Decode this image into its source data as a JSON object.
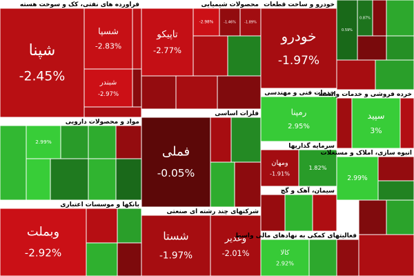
{
  "chart_data": {
    "type": "treemap",
    "sectors": [
      {
        "name": "فراورده های نفتی، کک و سوخت هسته",
        "labels": [
          "شپنا",
          "شسپا",
          null,
          "شبندر",
          null,
          null
        ],
        "values": [
          -2.45,
          -2.83,
          -2.5,
          -2.97,
          -2.1,
          -1.2
        ],
        "value_labels": [
          "-2.45%",
          "-2.83%",
          null,
          "-2.97%",
          null,
          null
        ]
      },
      {
        "name": "محصولات شیمیایی",
        "labels": [
          "تاپیکو",
          null,
          null,
          null,
          null,
          null,
          null,
          null,
          null
        ],
        "values": [
          -2.77,
          -2.98,
          -1.46,
          -1.89,
          -2.2,
          1.2,
          -1.5,
          -2.0,
          -1.0
        ],
        "value_labels": [
          "-2.77%",
          "-2.98%",
          "-1.46%",
          "-1.89%",
          null,
          null,
          null,
          null,
          null
        ]
      },
      {
        "name": "خودرو و ساخت قطعات",
        "labels": [
          "خودرو"
        ],
        "values": [
          -1.97
        ],
        "value_labels": [
          "-1.97%"
        ]
      },
      {
        "labels": [
          null,
          null,
          null,
          null,
          null,
          null,
          null,
          null
        ],
        "values": [
          0.59,
          0.87,
          -1.1,
          2.1,
          -0.8,
          1.5,
          -2.0,
          1.9
        ],
        "value_labels": [
          "0.59%",
          "0.87%",
          null,
          null,
          null,
          null,
          null,
          null
        ]
      },
      {
        "name": "مواد و محصولات دارویی",
        "labels": [
          null,
          null,
          null,
          null,
          null,
          null,
          null,
          null,
          null
        ],
        "values": [
          2.5,
          2.99,
          1.8,
          2.2,
          -1.5,
          3.0,
          1.0,
          2.4,
          0.6
        ],
        "value_labels": [
          null,
          "2.99%",
          null,
          null,
          null,
          null,
          null,
          null,
          null
        ]
      },
      {
        "name": "فلزات اساسی",
        "labels": [
          "فملی",
          null,
          null,
          null,
          null
        ],
        "values": [
          -0.05,
          -2.0,
          1.4,
          2.2,
          -1.3
        ],
        "value_labels": [
          "-0.05%",
          null,
          null,
          null,
          null
        ]
      },
      {
        "name": "خدمات فنی و مهندسی",
        "labels": [
          "رمپنا"
        ],
        "values": [
          2.95
        ],
        "value_labels": [
          "2.95%"
        ]
      },
      {
        "name": "خرده فروشی و خدمات وابسته",
        "labels": [
          null,
          "سپید",
          null
        ],
        "values": [
          -1.8,
          3,
          -2.3
        ],
        "value_labels": [
          null,
          "3%",
          null
        ]
      },
      {
        "name": "سرمایه گذاریها",
        "labels": [
          "ومهان",
          null
        ],
        "values": [
          -1.91,
          1.82
        ],
        "value_labels": [
          "-1.91%",
          "1.82%"
        ]
      },
      {
        "name": "انبوه سازی، املاک و مستغلات",
        "labels": [
          null,
          null,
          null
        ],
        "values": [
          2.99,
          -1.5,
          1.2
        ],
        "value_labels": [
          "2.99%",
          null,
          null
        ]
      },
      {
        "name": "بانکها و موسسات اعتباری",
        "labels": [
          "وبملت",
          null,
          null,
          null,
          null
        ],
        "values": [
          -2.92,
          -2.4,
          1.9,
          2.3,
          -0.9
        ],
        "value_labels": [
          "-2.92%",
          null,
          null,
          null,
          null
        ]
      },
      {
        "name": "شرکتهای چند رشته ای صنعتی",
        "labels": [
          "شستا",
          "وغدیر"
        ],
        "values": [
          -1.97,
          -2.01
        ],
        "value_labels": [
          "-1.97%",
          "-2.01%"
        ]
      },
      {
        "name": "سیمان، آهک و گچ",
        "labels": [
          null,
          null,
          null
        ],
        "values": [
          -1.6,
          2.4,
          -2.2
        ],
        "value_labels": [
          null,
          null,
          null
        ]
      },
      {
        "name": "فعالیتهای کمکی به نهادهای مالی واسط",
        "labels": [
          "کالا",
          null,
          null
        ],
        "values": [
          2.92,
          2.1,
          -1.4
        ],
        "value_labels": [
          "2.92%",
          null,
          null
        ]
      },
      {
        "labels": [
          null,
          null,
          null
        ],
        "values": [
          -1.0,
          2.0,
          -2.2
        ],
        "value_labels": [
          null,
          null,
          null
        ]
      }
    ]
  }
}
